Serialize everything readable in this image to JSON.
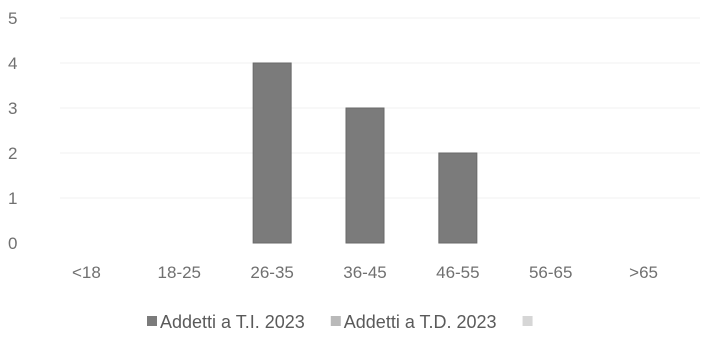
{
  "chart_data": {
    "type": "bar",
    "categories": [
      "<18",
      "18-25",
      "26-35",
      "36-45",
      "46-55",
      "56-65",
      ">65"
    ],
    "series": [
      {
        "name": "Addetti a T.I. 2023",
        "values": [
          0,
          0,
          4,
          3,
          2,
          0,
          0
        ],
        "color": "#7b7b7b"
      },
      {
        "name": "Addetti a T.D. 2023",
        "values": [
          0,
          0,
          0,
          0,
          0,
          0,
          0
        ],
        "color": "#b9b9b9"
      },
      {
        "name": "",
        "values": [
          0,
          0,
          0,
          0,
          0,
          0,
          0
        ],
        "color": "#d6d6d6"
      }
    ],
    "ylim": [
      0,
      5
    ],
    "yticks": [
      0,
      1,
      2,
      3,
      4,
      5
    ],
    "grid": true,
    "legend_position": "bottom"
  }
}
